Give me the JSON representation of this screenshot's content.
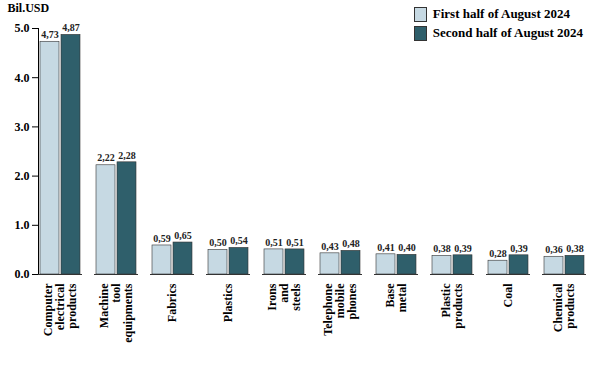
{
  "chart_data": {
    "type": "bar",
    "y_label": "Bil.USD",
    "categories": [
      "Computer electrical products",
      "Machine tool equipments",
      "Fabrics",
      "Plastics",
      "Irons and steels",
      "Telephone mobile phones",
      "Base metal",
      "Plastic products",
      "Coal",
      "Chemical products"
    ],
    "series": [
      {
        "name": "First half of August 2024",
        "color": "#c6d9e3",
        "values": [
          4.73,
          2.22,
          0.59,
          0.5,
          0.51,
          0.43,
          0.41,
          0.38,
          0.28,
          0.36
        ],
        "value_labels": [
          "4,73",
          "2,22",
          "0,59",
          "0,50",
          "0,51",
          "0,43",
          "0,41",
          "0,38",
          "0,28",
          "0,36"
        ]
      },
      {
        "name": "Second half of August 2024",
        "color": "#2f5f6b",
        "values": [
          4.87,
          2.28,
          0.65,
          0.54,
          0.51,
          0.48,
          0.4,
          0.39,
          0.39,
          0.38
        ],
        "value_labels": [
          "4,87",
          "2,28",
          "0,65",
          "0,54",
          "0,51",
          "0,48",
          "0,40",
          "0,39",
          "0,39",
          "0,38"
        ]
      }
    ],
    "ylim": [
      0,
      5
    ],
    "yticks": [
      0,
      1,
      2,
      3,
      4,
      5
    ],
    "grid": false,
    "legend": "top-right",
    "data_labels": true
  }
}
